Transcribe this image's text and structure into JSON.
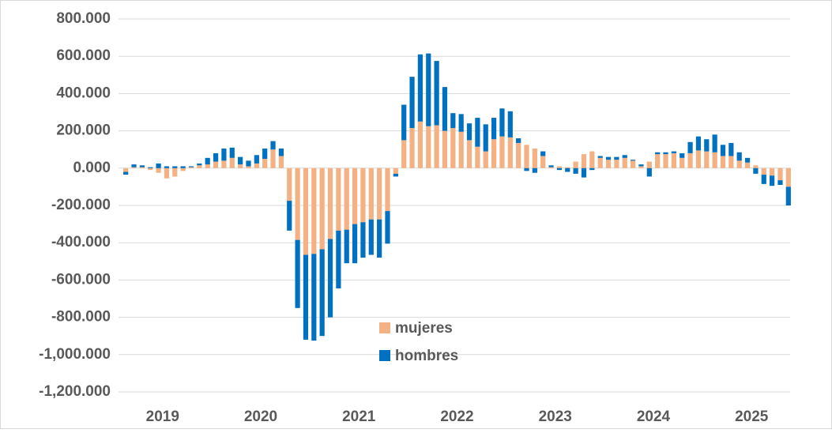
{
  "chart_data": {
    "type": "stacked_bar",
    "categories": [
      null,
      null,
      null,
      null,
      "2019",
      null,
      null,
      null,
      null,
      null,
      null,
      null,
      null,
      null,
      null,
      null,
      "2020",
      null,
      null,
      null,
      null,
      null,
      null,
      null,
      null,
      null,
      null,
      null,
      "2021",
      null,
      null,
      null,
      null,
      null,
      null,
      null,
      null,
      null,
      null,
      null,
      "2022",
      null,
      null,
      null,
      null,
      null,
      null,
      null,
      null,
      null,
      null,
      null,
      "2023",
      null,
      null,
      null,
      null,
      null,
      null,
      null,
      null,
      null,
      null,
      null,
      "2024",
      null,
      null,
      null,
      null,
      null,
      null,
      null,
      null,
      null,
      null,
      null,
      "2025",
      null,
      null,
      null,
      null,
      null
    ],
    "series": [
      {
        "name": "mujeres",
        "color": "#f4b183",
        "values": [
          -20,
          5,
          5,
          -10,
          -25,
          -55,
          -45,
          -15,
          5,
          15,
          20,
          35,
          40,
          55,
          20,
          10,
          25,
          50,
          100,
          65,
          -175,
          -385,
          -465,
          -460,
          -435,
          -380,
          -335,
          -330,
          -300,
          -290,
          -275,
          -275,
          -230,
          -30,
          150,
          215,
          250,
          225,
          230,
          200,
          215,
          195,
          150,
          115,
          90,
          155,
          170,
          165,
          135,
          125,
          105,
          65,
          5,
          10,
          5,
          35,
          75,
          90,
          55,
          45,
          45,
          55,
          40,
          10,
          35,
          75,
          75,
          80,
          55,
          80,
          95,
          90,
          85,
          65,
          65,
          40,
          30,
          15,
          -35,
          -40,
          -65,
          -100
        ]
      },
      {
        "name": "hombres",
        "color": "#0070c0",
        "values": [
          -15,
          15,
          10,
          5,
          25,
          10,
          10,
          10,
          5,
          10,
          35,
          45,
          65,
          55,
          40,
          30,
          45,
          55,
          45,
          40,
          -160,
          -365,
          -455,
          -465,
          -465,
          -420,
          -310,
          -180,
          -210,
          -190,
          -190,
          -205,
          -175,
          -15,
          190,
          275,
          360,
          390,
          345,
          235,
          80,
          95,
          90,
          155,
          145,
          115,
          150,
          140,
          25,
          -15,
          -25,
          25,
          10,
          -10,
          -20,
          -30,
          -50,
          -10,
          10,
          15,
          15,
          15,
          5,
          10,
          -45,
          10,
          10,
          10,
          25,
          60,
          75,
          65,
          95,
          60,
          70,
          45,
          25,
          -30,
          -50,
          -55,
          -25,
          -100
        ]
      }
    ],
    "ylim": [
      -1200,
      800
    ],
    "yticks": [
      {
        "value": 800,
        "label": "800.000"
      },
      {
        "value": 600,
        "label": "600.000"
      },
      {
        "value": 400,
        "label": "400.000"
      },
      {
        "value": 200,
        "label": "200.000"
      },
      {
        "value": 0,
        "label": "0.000"
      },
      {
        "value": -200,
        "label": "-200.000"
      },
      {
        "value": -400,
        "label": "-400.000"
      },
      {
        "value": -600,
        "label": "-600.000"
      },
      {
        "value": -800,
        "label": "-800.000"
      },
      {
        "value": -1000,
        "label": "-1,000.000"
      },
      {
        "value": -1200,
        "label": "-1,200.000"
      }
    ],
    "grid": true
  }
}
